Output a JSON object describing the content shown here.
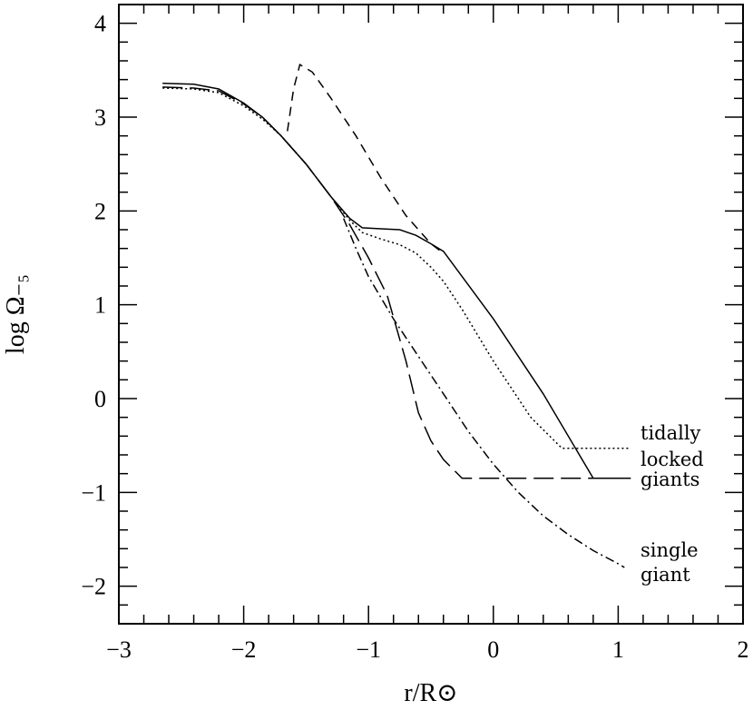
{
  "chart_data": {
    "type": "line",
    "title": "",
    "xlabel": "r/R⊙",
    "ylabel": "log Ω₋₅",
    "xlim": [
      -3,
      2
    ],
    "ylim": [
      -2.4,
      4.2
    ],
    "xticks": [
      "−3",
      "−2",
      "−1",
      "0",
      "1",
      "2"
    ],
    "yticks": [
      "−2",
      "−1",
      "0",
      "1",
      "2",
      "3",
      "4"
    ],
    "grid": false,
    "legend": "none",
    "annotations": [
      {
        "lines": [
          "tidally",
          "locked",
          "giants"
        ]
      },
      {
        "lines": [
          "single",
          "giant"
        ]
      }
    ],
    "series": [
      {
        "style": "solid",
        "x": [
          -2.65,
          -2.4,
          -2.2,
          -2.0,
          -1.85,
          -1.7,
          -1.5,
          -1.3,
          -1.15,
          -1.05,
          -0.9,
          -0.75,
          -0.62,
          -0.5,
          -0.4,
          0.0,
          0.4,
          0.8,
          1.1
        ],
        "y": [
          3.36,
          3.35,
          3.3,
          3.15,
          3.0,
          2.8,
          2.5,
          2.15,
          1.92,
          1.82,
          1.81,
          1.8,
          1.74,
          1.65,
          1.57,
          0.85,
          0.05,
          -0.85,
          -0.85
        ]
      },
      {
        "style": "dotted",
        "x": [
          -2.65,
          -2.4,
          -2.2,
          -2.0,
          -1.85,
          -1.7,
          -1.5,
          -1.3,
          -1.15,
          -1.05,
          -0.9,
          -0.75,
          -0.62,
          -0.5,
          -0.4,
          -0.25,
          0.0,
          0.3,
          0.55,
          1.1
        ],
        "y": [
          3.31,
          3.3,
          3.26,
          3.12,
          2.98,
          2.8,
          2.5,
          2.15,
          1.9,
          1.77,
          1.7,
          1.64,
          1.55,
          1.4,
          1.25,
          0.95,
          0.4,
          -0.2,
          -0.53,
          -0.53
        ]
      },
      {
        "style": "short-dash",
        "x": [
          -1.65,
          -1.6,
          -1.55,
          -1.45,
          -1.3,
          -1.1,
          -0.9,
          -0.7,
          -0.5,
          -0.42
        ],
        "y": [
          2.85,
          3.3,
          3.56,
          3.48,
          3.2,
          2.8,
          2.35,
          1.95,
          1.65,
          1.57
        ]
      },
      {
        "style": "long-dash",
        "x": [
          -2.65,
          -2.4,
          -2.2,
          -2.0,
          -1.85,
          -1.7,
          -1.5,
          -1.3,
          -1.15,
          -1.0,
          -0.85,
          -0.7,
          -0.6,
          -0.5,
          -0.4,
          -0.25,
          1.1
        ],
        "y": [
          3.32,
          3.31,
          3.28,
          3.14,
          3.0,
          2.8,
          2.5,
          2.15,
          1.85,
          1.5,
          1.1,
          0.4,
          -0.15,
          -0.45,
          -0.65,
          -0.85,
          -0.85
        ]
      },
      {
        "style": "dash-dot",
        "x": [
          -1.2,
          -1.1,
          -1.0,
          -0.8,
          -0.6,
          -0.4,
          -0.2,
          0.0,
          0.2,
          0.4,
          0.6,
          0.8,
          1.0,
          1.05
        ],
        "y": [
          1.92,
          1.6,
          1.3,
          0.85,
          0.45,
          0.05,
          -0.35,
          -0.7,
          -1.0,
          -1.25,
          -1.45,
          -1.62,
          -1.76,
          -1.8
        ]
      }
    ]
  }
}
